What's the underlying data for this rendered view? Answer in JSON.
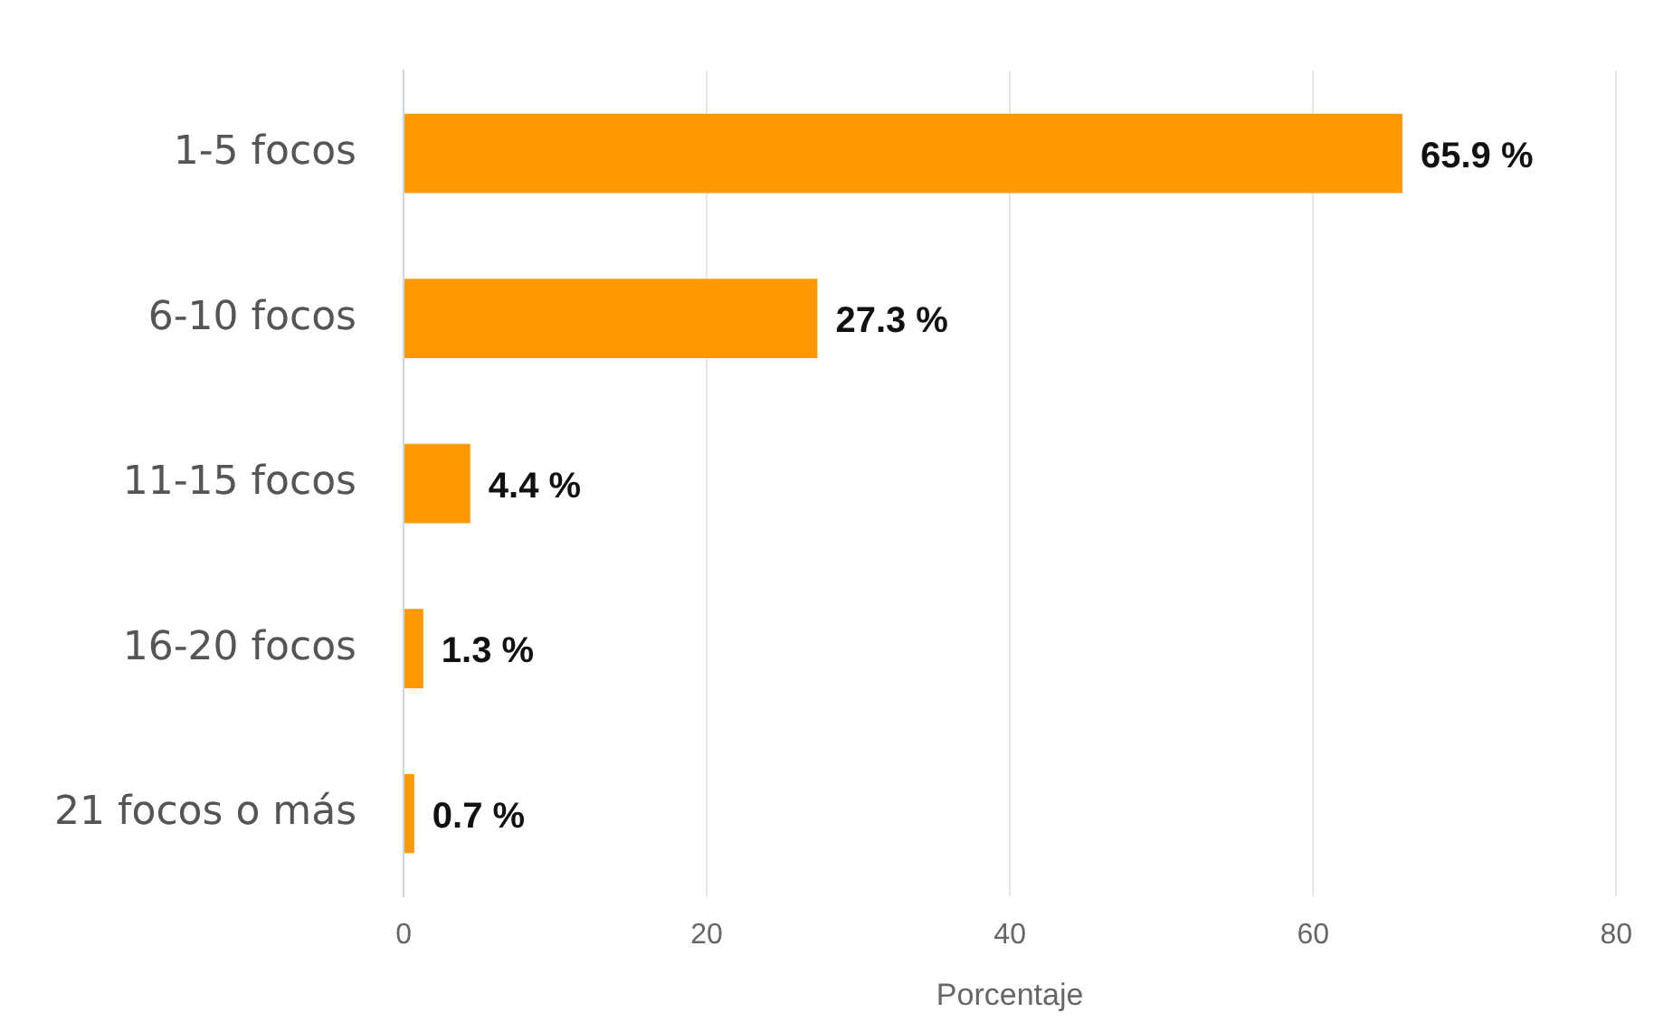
{
  "chart_data": {
    "type": "bar",
    "orientation": "horizontal",
    "xlabel": "Porcentaje",
    "categories": [
      "1-5 focos",
      "6-10 focos",
      "11-15 focos",
      "16-20 focos",
      "21 focos o más"
    ],
    "values": [
      65.9,
      27.3,
      4.4,
      1.3,
      0.7
    ],
    "color": "#ff9900",
    "value_labels": [
      "65.9 %",
      "27.3 %",
      "4.4 %",
      "1.3 %",
      "0.7 %"
    ],
    "xlim": [
      0,
      80
    ],
    "xticks": [
      0,
      20,
      40,
      60,
      80
    ],
    "grid": "x"
  }
}
